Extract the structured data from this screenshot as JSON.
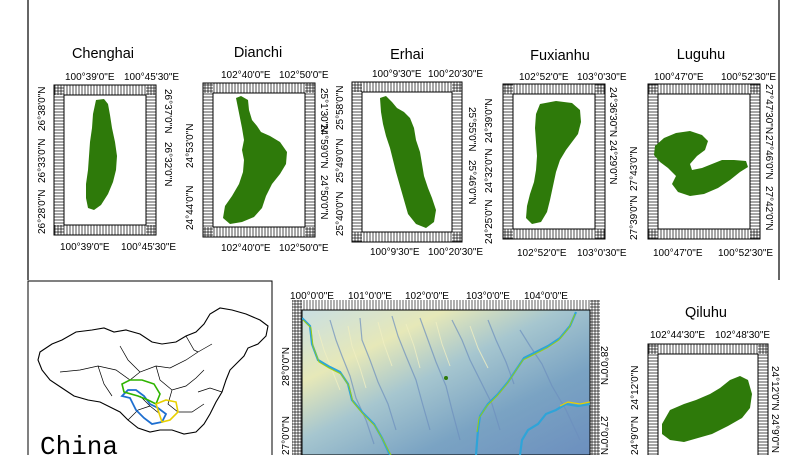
{
  "figure": {
    "panels": [
      {
        "id": "chenghai",
        "title": "Chenghai",
        "top_labels": [
          "100°39'0\"E",
          "100°45'30\"E"
        ],
        "bottom_labels": [
          "100°39'0\"E",
          "100°45'30\"E"
        ],
        "left_labels": [
          "26°38'0\"N",
          "26°33'0\"N",
          "26°28'0\"N"
        ],
        "right_labels": [
          "26°37'0\"N",
          "26°32'0\"N"
        ],
        "lake_color": "#2e7a0a"
      },
      {
        "id": "dianchi",
        "title": "Dianchi",
        "top_labels": [
          "102°40'0\"E",
          "102°50'0\"E"
        ],
        "bottom_labels": [
          "102°40'0\"E",
          "102°50'0\"E"
        ],
        "left_labels": [
          "24°53'0\"N",
          "24°44'0\"N"
        ],
        "right_labels": [
          "25°1'30\"N",
          "24°59'0\"N",
          "24°50'0\"N"
        ],
        "lake_color": "#2e7a0a"
      },
      {
        "id": "erhai",
        "title": "Erhai",
        "top_labels": [
          "100°9'30\"E",
          "100°20'30\"E"
        ],
        "bottom_labels": [
          "100°9'30\"E",
          "100°20'30\"E"
        ],
        "left_labels": [
          "25°58'0\"N",
          "25°49'0\"N",
          "25°40'0\"N"
        ],
        "right_labels": [
          "25°55'0\"N",
          "25°46'0\"N"
        ],
        "lake_color": "#2e7a0a"
      },
      {
        "id": "fuxianhu",
        "title": "Fuxianhu",
        "top_labels": [
          "102°52'0\"E",
          "103°0'30\"E"
        ],
        "bottom_labels": [
          "102°52'0\"E",
          "103°0'30\"E"
        ],
        "left_labels": [
          "24°39'0\"N",
          "24°32'0\"N",
          "24°25'0\"N"
        ],
        "right_labels": [
          "24°36'30\"N",
          "24°29'0\"N"
        ],
        "lake_color": "#2e7a0a"
      },
      {
        "id": "luguhu",
        "title": "Luguhu",
        "top_labels": [
          "100°47'0\"E",
          "100°52'30\"E"
        ],
        "bottom_labels": [
          "100°47'0\"E",
          "100°52'30\"E"
        ],
        "left_labels": [
          "27°43'0\"N",
          "27°39'0\"N"
        ],
        "right_labels": [
          "27°47'30\"N",
          "27°46'0\"N",
          "27°42'0\"N"
        ],
        "lake_color": "#2e7a0a"
      },
      {
        "id": "qiluhu",
        "title": "Qiluhu",
        "top_labels": [
          "102°44'30\"E",
          "102°48'30\"E"
        ],
        "left_labels": [
          "24°12'0\"N",
          "24°9'0\"N"
        ],
        "right_labels": [
          "24°12'0\"N",
          "24°9'0\"N"
        ],
        "lake_color": "#2e7a0a"
      }
    ],
    "china_label": "China",
    "dem": {
      "top_labels": [
        "100°0'0\"E",
        "101°0'0\"E",
        "102°0'0\"E",
        "103°0'0\"E",
        "104°0'0\"E"
      ],
      "left_labels": [
        "28°0'0\"N",
        "27°0'0\"N"
      ],
      "right_labels": [
        "28°0'0\"N",
        "27°0'0\"N"
      ]
    }
  }
}
